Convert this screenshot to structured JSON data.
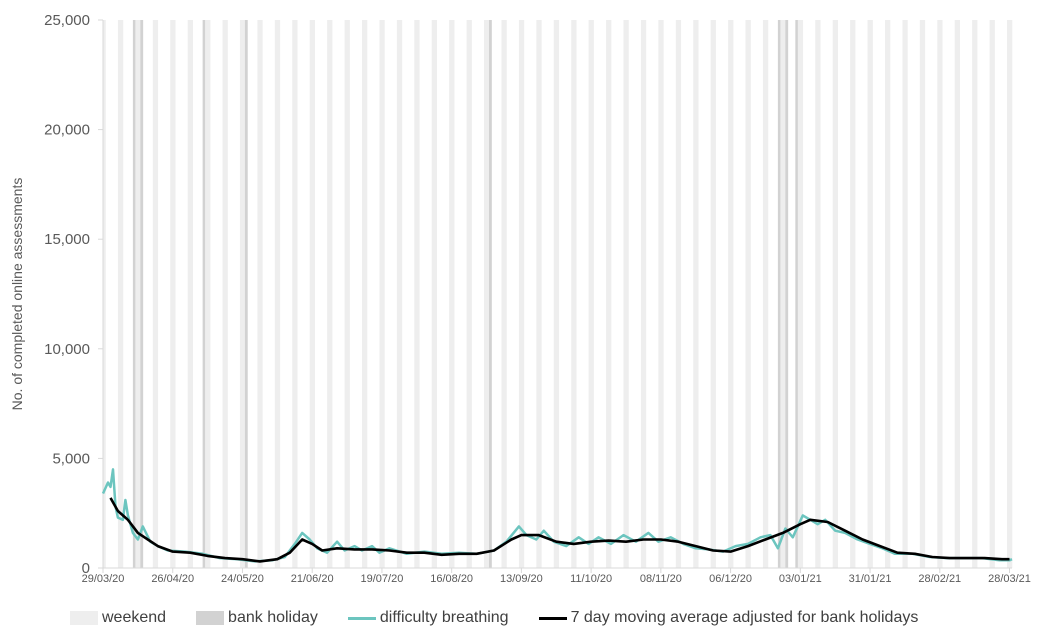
{
  "chart_data": {
    "type": "line",
    "ylabel": "No. of completed online assessments",
    "ylim": [
      0,
      25000
    ],
    "yticks": [
      "0",
      "5,000",
      "10,000",
      "15,000",
      "20,000",
      "25,000"
    ],
    "ytick_values": [
      0,
      5000,
      10000,
      15000,
      20000,
      25000
    ],
    "x_start": "2020-03-29",
    "x_end": "2021-03-29",
    "xticks": [
      "29/03/20",
      "26/04/20",
      "24/05/20",
      "21/06/20",
      "19/07/20",
      "16/08/20",
      "13/09/20",
      "11/10/20",
      "08/11/20",
      "06/12/20",
      "03/01/21",
      "31/01/21",
      "28/02/21",
      "28/03/21"
    ],
    "xtick_dates": [
      "2020-03-29",
      "2020-04-26",
      "2020-05-24",
      "2020-06-21",
      "2020-07-19",
      "2020-08-16",
      "2020-09-13",
      "2020-10-11",
      "2020-11-08",
      "2020-12-06",
      "2021-01-03",
      "2021-01-31",
      "2021-02-28",
      "2021-03-28"
    ],
    "bank_holidays": [
      "2020-04-10",
      "2020-04-13",
      "2020-05-08",
      "2020-05-25",
      "2020-08-31",
      "2020-12-25",
      "2020-12-28",
      "2021-01-01"
    ],
    "grid": true,
    "legend_position": "bottom",
    "legend": [
      "weekend",
      "bank holiday",
      "difficulty breathing",
      "7 day moving average adjusted for bank holidays"
    ],
    "colors": {
      "weekend": "#eeeeee",
      "bank_holiday": "#d2d2d2",
      "daily": "#6cc5bf",
      "average": "#000000",
      "axis": "#d9d9d9"
    },
    "series": [
      {
        "name": "difficulty breathing",
        "points": [
          [
            "2020-03-29",
            3400
          ],
          [
            "2020-03-31",
            3900
          ],
          [
            "2020-04-01",
            3700
          ],
          [
            "2020-04-02",
            4500
          ],
          [
            "2020-04-03",
            2800
          ],
          [
            "2020-04-04",
            2300
          ],
          [
            "2020-04-06",
            2200
          ],
          [
            "2020-04-07",
            3100
          ],
          [
            "2020-04-08",
            2400
          ],
          [
            "2020-04-10",
            1600
          ],
          [
            "2020-04-12",
            1300
          ],
          [
            "2020-04-14",
            1900
          ],
          [
            "2020-04-17",
            1200
          ],
          [
            "2020-04-20",
            1000
          ],
          [
            "2020-04-24",
            800
          ],
          [
            "2020-05-01",
            750
          ],
          [
            "2020-05-08",
            650
          ],
          [
            "2020-05-15",
            450
          ],
          [
            "2020-05-22",
            400
          ],
          [
            "2020-05-29",
            300
          ],
          [
            "2020-06-05",
            350
          ],
          [
            "2020-06-10",
            500
          ],
          [
            "2020-06-14",
            1100
          ],
          [
            "2020-06-17",
            1600
          ],
          [
            "2020-06-20",
            1300
          ],
          [
            "2020-06-23",
            900
          ],
          [
            "2020-06-27",
            700
          ],
          [
            "2020-07-01",
            1200
          ],
          [
            "2020-07-04",
            800
          ],
          [
            "2020-07-08",
            1000
          ],
          [
            "2020-07-11",
            800
          ],
          [
            "2020-07-15",
            1000
          ],
          [
            "2020-07-18",
            700
          ],
          [
            "2020-07-22",
            900
          ],
          [
            "2020-07-29",
            650
          ],
          [
            "2020-08-05",
            750
          ],
          [
            "2020-08-12",
            650
          ],
          [
            "2020-08-19",
            700
          ],
          [
            "2020-08-26",
            650
          ],
          [
            "2020-09-02",
            800
          ],
          [
            "2020-09-07",
            1200
          ],
          [
            "2020-09-12",
            1900
          ],
          [
            "2020-09-15",
            1500
          ],
          [
            "2020-09-19",
            1300
          ],
          [
            "2020-09-22",
            1700
          ],
          [
            "2020-09-26",
            1200
          ],
          [
            "2020-10-01",
            1000
          ],
          [
            "2020-10-06",
            1400
          ],
          [
            "2020-10-10",
            1100
          ],
          [
            "2020-10-14",
            1400
          ],
          [
            "2020-10-19",
            1100
          ],
          [
            "2020-10-24",
            1500
          ],
          [
            "2020-10-29",
            1200
          ],
          [
            "2020-11-03",
            1600
          ],
          [
            "2020-11-07",
            1200
          ],
          [
            "2020-11-12",
            1400
          ],
          [
            "2020-11-17",
            1100
          ],
          [
            "2020-11-22",
            900
          ],
          [
            "2020-11-27",
            850
          ],
          [
            "2020-12-03",
            750
          ],
          [
            "2020-12-08",
            1000
          ],
          [
            "2020-12-13",
            1100
          ],
          [
            "2020-12-18",
            1400
          ],
          [
            "2020-12-22",
            1500
          ],
          [
            "2020-12-25",
            900
          ],
          [
            "2020-12-28",
            1800
          ],
          [
            "2020-12-31",
            1400
          ],
          [
            "2021-01-04",
            2400
          ],
          [
            "2021-01-07",
            2200
          ],
          [
            "2021-01-10",
            2000
          ],
          [
            "2021-01-13",
            2200
          ],
          [
            "2021-01-17",
            1700
          ],
          [
            "2021-01-21",
            1600
          ],
          [
            "2021-01-26",
            1300
          ],
          [
            "2021-01-31",
            1100
          ],
          [
            "2021-02-05",
            900
          ],
          [
            "2021-02-10",
            650
          ],
          [
            "2021-02-17",
            650
          ],
          [
            "2021-02-24",
            500
          ],
          [
            "2021-03-03",
            450
          ],
          [
            "2021-03-10",
            450
          ],
          [
            "2021-03-17",
            450
          ],
          [
            "2021-03-24",
            350
          ],
          [
            "2021-03-28",
            350
          ],
          [
            "2021-03-29",
            400
          ]
        ]
      },
      {
        "name": "7 day moving average adjusted for bank holidays",
        "points": [
          [
            "2020-04-01",
            3200
          ],
          [
            "2020-04-04",
            2600
          ],
          [
            "2020-04-08",
            2200
          ],
          [
            "2020-04-12",
            1600
          ],
          [
            "2020-04-16",
            1300
          ],
          [
            "2020-04-20",
            1000
          ],
          [
            "2020-04-26",
            750
          ],
          [
            "2020-05-03",
            700
          ],
          [
            "2020-05-10",
            550
          ],
          [
            "2020-05-17",
            450
          ],
          [
            "2020-05-24",
            400
          ],
          [
            "2020-05-31",
            300
          ],
          [
            "2020-06-07",
            400
          ],
          [
            "2020-06-12",
            700
          ],
          [
            "2020-06-17",
            1300
          ],
          [
            "2020-06-21",
            1100
          ],
          [
            "2020-06-25",
            800
          ],
          [
            "2020-07-01",
            900
          ],
          [
            "2020-07-08",
            850
          ],
          [
            "2020-07-15",
            850
          ],
          [
            "2020-07-22",
            800
          ],
          [
            "2020-07-29",
            700
          ],
          [
            "2020-08-05",
            700
          ],
          [
            "2020-08-12",
            600
          ],
          [
            "2020-08-19",
            650
          ],
          [
            "2020-08-26",
            650
          ],
          [
            "2020-09-02",
            800
          ],
          [
            "2020-09-09",
            1300
          ],
          [
            "2020-09-13",
            1500
          ],
          [
            "2020-09-20",
            1500
          ],
          [
            "2020-09-27",
            1200
          ],
          [
            "2020-10-04",
            1100
          ],
          [
            "2020-10-11",
            1200
          ],
          [
            "2020-10-18",
            1250
          ],
          [
            "2020-10-25",
            1200
          ],
          [
            "2020-11-01",
            1300
          ],
          [
            "2020-11-08",
            1300
          ],
          [
            "2020-11-15",
            1200
          ],
          [
            "2020-11-22",
            1000
          ],
          [
            "2020-11-29",
            800
          ],
          [
            "2020-12-06",
            750
          ],
          [
            "2020-12-13",
            1000
          ],
          [
            "2020-12-20",
            1300
          ],
          [
            "2020-12-27",
            1600
          ],
          [
            "2021-01-03",
            2000
          ],
          [
            "2021-01-07",
            2200
          ],
          [
            "2021-01-14",
            2100
          ],
          [
            "2021-01-21",
            1700
          ],
          [
            "2021-01-28",
            1300
          ],
          [
            "2021-02-04",
            1000
          ],
          [
            "2021-02-11",
            700
          ],
          [
            "2021-02-18",
            650
          ],
          [
            "2021-02-25",
            500
          ],
          [
            "2021-03-04",
            450
          ],
          [
            "2021-03-11",
            450
          ],
          [
            "2021-03-18",
            450
          ],
          [
            "2021-03-25",
            400
          ],
          [
            "2021-03-28",
            400
          ]
        ]
      }
    ]
  }
}
